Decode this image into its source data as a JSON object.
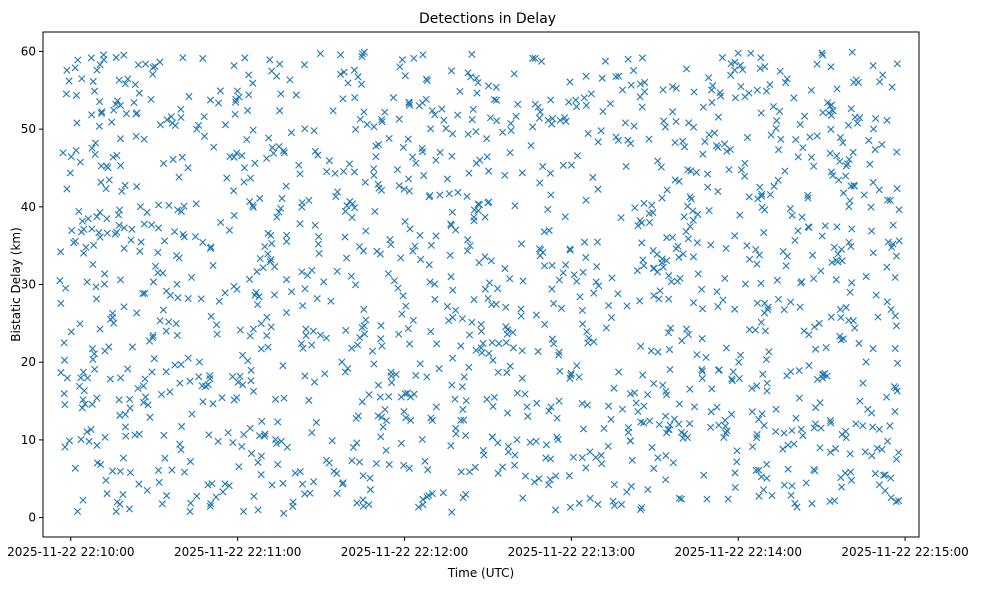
{
  "chart_data": {
    "type": "scatter",
    "title": "Detections in Delay",
    "xlabel": "Time (UTC)",
    "ylabel": "Bistatic Delay (km)",
    "marker": "x",
    "color": "#1f77b4",
    "x_is_time": true,
    "xlim": [
      "2025-11-22 22:09:50",
      "2025-11-22 22:15:05"
    ],
    "ylim": [
      -2.5,
      62.5
    ],
    "x_data_range": [
      "2025-11-22 22:09:56",
      "2025-11-22 22:14:58"
    ],
    "y_data_range": [
      0.5,
      60
    ],
    "point_count": 1500,
    "x_ticks": [
      {
        "value": "2025-11-22 22:10:00",
        "label": "2025-11-22 22:10:00"
      },
      {
        "value": "2025-11-22 22:11:00",
        "label": "2025-11-22 22:11:00"
      },
      {
        "value": "2025-11-22 22:12:00",
        "label": "2025-11-22 22:12:00"
      },
      {
        "value": "2025-11-22 22:13:00",
        "label": "2025-11-22 22:13:00"
      },
      {
        "value": "2025-11-22 22:14:00",
        "label": "2025-11-22 22:14:00"
      },
      {
        "value": "2025-11-22 22:15:00",
        "label": "2025-11-22 22:15:00"
      }
    ],
    "y_ticks": [
      {
        "value": 0,
        "label": "0"
      },
      {
        "value": 10,
        "label": "10"
      },
      {
        "value": 20,
        "label": "20"
      },
      {
        "value": 30,
        "label": "30"
      },
      {
        "value": 40,
        "label": "40"
      },
      {
        "value": 50,
        "label": "50"
      },
      {
        "value": 60,
        "label": "60"
      }
    ],
    "grid": false,
    "legend": "none"
  }
}
